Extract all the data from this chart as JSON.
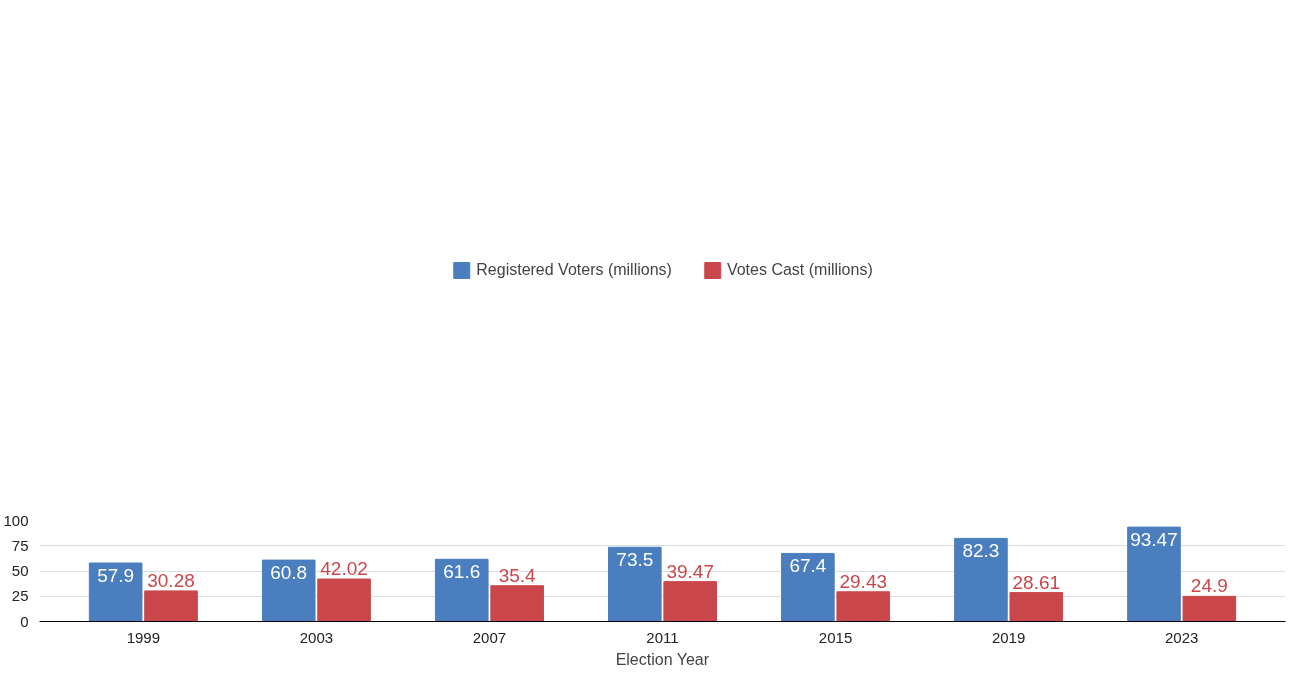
{
  "chart_data": {
    "type": "bar",
    "xlabel": "Election Year",
    "categories": [
      "1999",
      "2003",
      "2007",
      "2011",
      "2015",
      "2019",
      "2023"
    ],
    "series": [
      {
        "name": "Registered Voters (millions)",
        "color": "#4a7ebf",
        "values": [
          57.9,
          60.8,
          61.6,
          73.5,
          67.4,
          82.3,
          93.47
        ]
      },
      {
        "name": "Votes Cast (millions)",
        "color": "#c9474a",
        "values": [
          30.28,
          42.02,
          35.4,
          39.47,
          29.43,
          28.61,
          24.9
        ]
      }
    ],
    "ylim": [
      0,
      100
    ],
    "yticks": [
      0,
      25,
      50,
      75,
      100
    ],
    "grid": "y",
    "legend": "top",
    "data_labels": true
  }
}
